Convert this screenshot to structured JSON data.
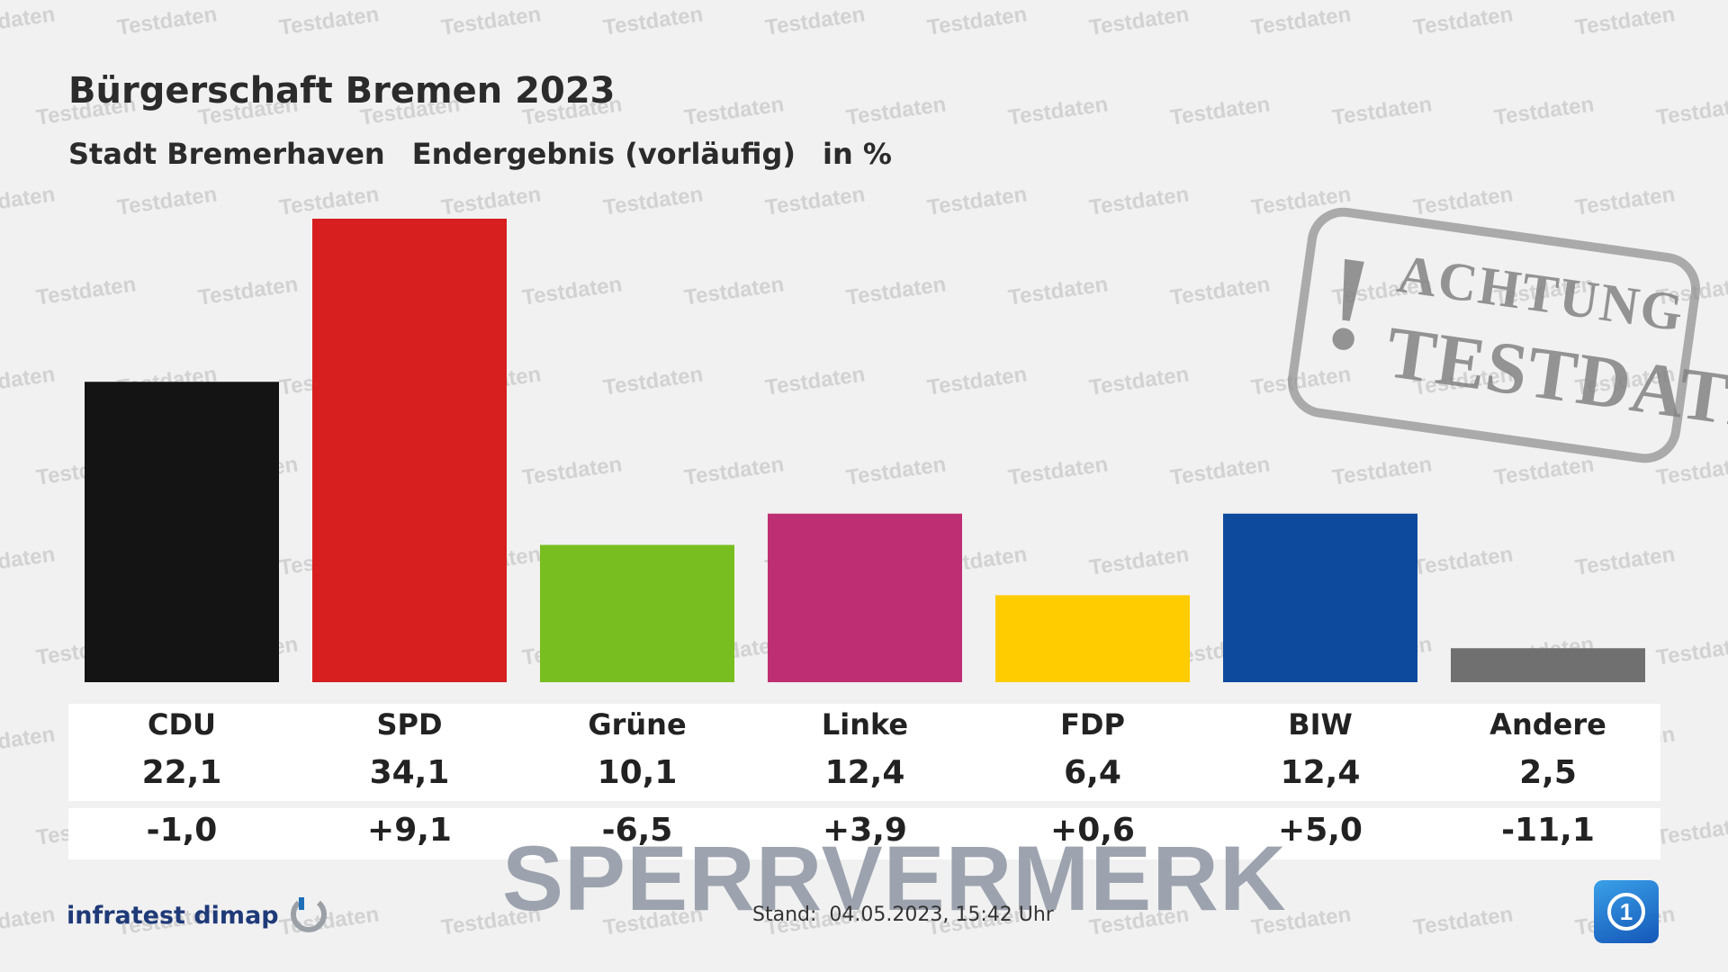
{
  "header": {
    "title": "Bürgerschaft Bremen 2023",
    "subtitle_area": "Stadt Bremerhaven",
    "subtitle_status": "Endergebnis (vorläufig)",
    "subtitle_unit": "in %"
  },
  "chart_data": {
    "type": "bar",
    "categories": [
      "CDU",
      "SPD",
      "Grüne",
      "Linke",
      "FDP",
      "BIW",
      "Andere"
    ],
    "values": [
      22.1,
      34.1,
      10.1,
      12.4,
      6.4,
      12.4,
      2.5
    ],
    "value_labels": [
      "22,1",
      "34,1",
      "10,1",
      "12,4",
      "6,4",
      "12,4",
      "2,5"
    ],
    "changes": [
      -1.0,
      9.1,
      -6.5,
      3.9,
      0.6,
      5.0,
      -11.1
    ],
    "change_labels": [
      "-1,0",
      "+9,1",
      "-6,5",
      "+3,9",
      "+0,6",
      "+5,0",
      "-11,1"
    ],
    "colors": [
      "#141414",
      "#d71f20",
      "#78be20",
      "#be2e72",
      "#ffcc00",
      "#0d4a9e",
      "#707070"
    ],
    "ylim": [
      0,
      34.1
    ],
    "grid": false,
    "legend": "none"
  },
  "footer": {
    "brand": "infratest dimap",
    "stand_label": "Stand:",
    "stand_value": "04.05.2023, 15:42 Uhr"
  },
  "overlays": {
    "watermark_text": "Testdaten",
    "stamp_mark": "!",
    "stamp_line1": "ACHTUNG",
    "stamp_line2": "TESTDATEN",
    "sperrvermerk": "SPERRVERMERK"
  },
  "icons": {
    "brand_logo": "infratest-dimap-logo-icon",
    "broadcaster_logo": "ard-one-logo-icon",
    "broadcaster_mark": "1"
  }
}
